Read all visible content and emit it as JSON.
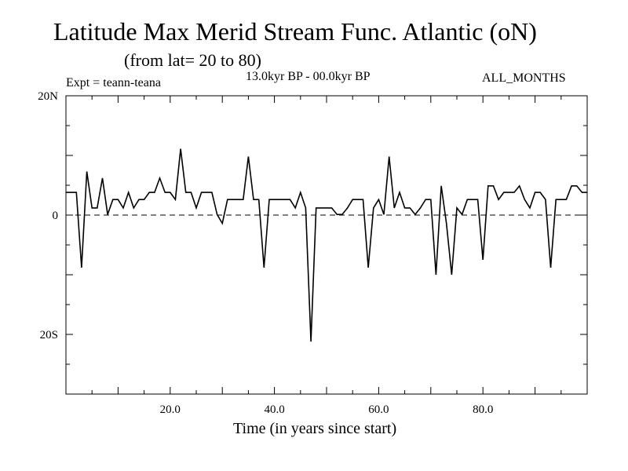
{
  "header": {
    "title": "Latitude Max Merid Stream Func. Atlantic (oN)",
    "subtitle": "(from lat= 20 to 80)",
    "period": "13.0kyr BP - 00.0kyr BP",
    "experiment": "Expt = teann-teana",
    "months": "ALL_MONTHS"
  },
  "chart_data": {
    "type": "line",
    "title": "Latitude Max Merid Stream Func. Atlantic (oN)",
    "xlabel": "Time (in years since start)",
    "ylabel": "",
    "xlim": [
      0,
      100
    ],
    "ylim": [
      -30,
      20
    ],
    "x_ticks": [
      20,
      40,
      60,
      80
    ],
    "x_tick_labels": [
      "20.0",
      "40.0",
      "60.0",
      "80.0"
    ],
    "y_ticks": [
      20,
      0,
      -20
    ],
    "y_tick_labels": [
      "20N",
      "0",
      "20S"
    ],
    "zero_line": "dashed",
    "series": [
      {
        "name": "teann-teana",
        "x": [
          0,
          1,
          2,
          3,
          4,
          5,
          6,
          7,
          8,
          9,
          10,
          11,
          12,
          13,
          14,
          15,
          16,
          17,
          18,
          19,
          20,
          21,
          22,
          23,
          24,
          25,
          26,
          27,
          28,
          29,
          30,
          31,
          32,
          33,
          34,
          35,
          36,
          37,
          38,
          39,
          40,
          41,
          42,
          43,
          44,
          45,
          46,
          47,
          48,
          49,
          50,
          51,
          52,
          53,
          54,
          55,
          56,
          57,
          58,
          59,
          60,
          61,
          62,
          63,
          64,
          65,
          66,
          67,
          68,
          69,
          70,
          71,
          72,
          73,
          74,
          75,
          76,
          77,
          78,
          79,
          80,
          81,
          82,
          83,
          84,
          85,
          86,
          87,
          88,
          89,
          90,
          91,
          92,
          93,
          94,
          95,
          96,
          97,
          98,
          99,
          100
        ],
        "values": [
          3.8,
          3.8,
          3.8,
          -8.8,
          7.3,
          1.2,
          1.2,
          6.2,
          0.1,
          2.6,
          2.6,
          1.2,
          3.8,
          1.2,
          2.6,
          2.6,
          3.8,
          3.8,
          6.2,
          3.8,
          3.8,
          2.6,
          11.1,
          3.8,
          3.8,
          1.2,
          3.8,
          3.8,
          3.8,
          0.1,
          -1.4,
          2.6,
          2.6,
          2.6,
          2.6,
          9.8,
          2.6,
          2.6,
          -8.8,
          2.6,
          2.6,
          2.6,
          2.6,
          2.6,
          1.2,
          3.8,
          1.2,
          -21.2,
          1.2,
          1.2,
          1.2,
          1.2,
          0.1,
          0.1,
          1.2,
          2.6,
          2.6,
          2.6,
          -8.8,
          1.2,
          2.6,
          0.1,
          9.8,
          1.2,
          3.8,
          1.2,
          1.2,
          0.1,
          1.2,
          2.6,
          2.6,
          -10.0,
          4.9,
          -1.4,
          -10.0,
          1.2,
          0.1,
          2.6,
          2.6,
          2.6,
          -7.5,
          4.9,
          4.9,
          2.6,
          3.8,
          3.8,
          3.8,
          4.9,
          2.6,
          1.2,
          3.8,
          3.8,
          2.6,
          -8.8,
          2.6,
          2.6,
          2.6,
          4.9,
          4.9,
          3.8,
          3.8
        ]
      }
    ]
  }
}
